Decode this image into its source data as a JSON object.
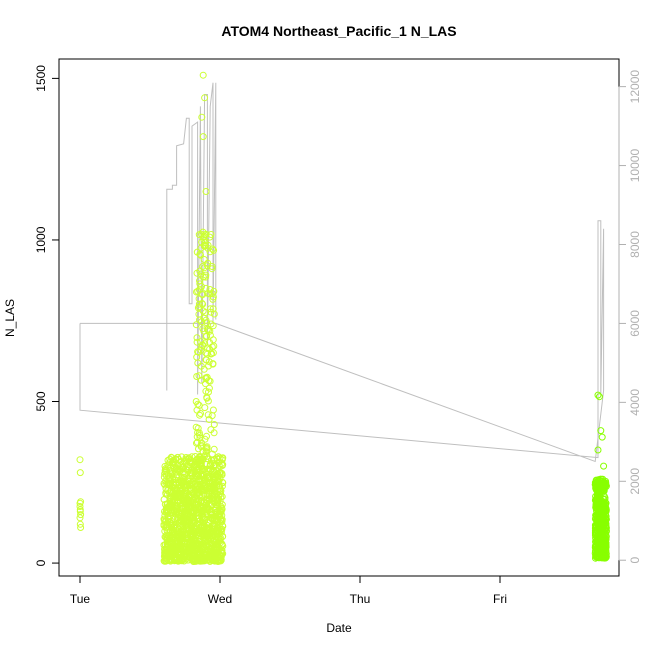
{
  "chart_data": {
    "type": "scatter",
    "title": "ATOM4 Northeast_Pacific_1 N_LAS",
    "subtitle": "",
    "xlabel": "Date",
    "ylabel": "N_LAS",
    "x_ticks": [
      "Tue",
      "Wed",
      "Thu",
      "Fri"
    ],
    "x_range_days": [
      0.0,
      3.8
    ],
    "ylim": [
      -40,
      1560
    ],
    "y_ticks": [
      0,
      500,
      1000,
      1500
    ],
    "y2lim": [
      -400,
      12700
    ],
    "y2_ticks": [
      0,
      2000,
      4000,
      6000,
      8000,
      10000,
      12000
    ],
    "grid": false,
    "colors": {
      "points_first": "#ccff33",
      "points_last": "#88ff00",
      "secondary_line": "#bfbfbf"
    },
    "series": [
      {
        "type": "scatter",
        "axis": "left",
        "clusters": [
          {
            "x_start": 0.0,
            "x_end": 0.005,
            "y_points": [
              320,
              280,
              190,
              175,
              160,
              150,
              140,
              120,
              110,
              185,
              165
            ]
          },
          {
            "x_start": 0.6,
            "x_end": 1.02,
            "y_band": [
              5,
              330
            ],
            "y_peaks": [
              [
                0.88,
                1510
              ],
              [
                0.89,
                1440
              ],
              [
                0.87,
                1380
              ],
              [
                0.88,
                1320
              ],
              [
                0.9,
                1150
              ],
              [
                0.89,
                980
              ],
              [
                0.91,
                920
              ],
              [
                0.9,
                850
              ],
              [
                0.88,
                780
              ],
              [
                0.9,
                650
              ],
              [
                0.85,
                580
              ],
              [
                0.83,
                500
              ],
              [
                0.93,
                300
              ],
              [
                0.79,
                310
              ],
              [
                0.74,
                250
              ]
            ]
          },
          {
            "x_start": 3.68,
            "x_end": 3.76,
            "y_band": [
              15,
              260
            ],
            "y_peaks": [
              [
                3.7,
                520
              ],
              [
                3.71,
                515
              ],
              [
                3.72,
                410
              ],
              [
                3.73,
                390
              ],
              [
                3.7,
                350
              ],
              [
                3.74,
                300
              ]
            ]
          }
        ]
      },
      {
        "type": "line",
        "axis": "right",
        "points": [
          [
            0.0,
            6000
          ],
          [
            0.0,
            3800
          ],
          [
            3.7,
            2600
          ],
          [
            3.7,
            8600
          ],
          [
            3.72,
            8600
          ],
          [
            3.72,
            4200
          ],
          [
            3.74,
            8400
          ],
          [
            3.74,
            4300
          ],
          [
            3.68,
            2500
          ],
          [
            0.97,
            6000
          ],
          [
            0.0,
            6000
          ]
        ],
        "extra_segments": [
          [
            [
              0.62,
              4300
            ],
            [
              0.62,
              9400
            ],
            [
              0.66,
              9400
            ],
            [
              0.66,
              9500
            ],
            [
              0.69,
              9500
            ],
            [
              0.69,
              10500
            ],
            [
              0.74,
              10550
            ],
            [
              0.76,
              11200
            ],
            [
              0.78,
              11200
            ],
            [
              0.78,
              6500
            ],
            [
              0.8,
              6500
            ],
            [
              0.8,
              11000
            ],
            [
              0.84,
              11100
            ],
            [
              0.84,
              4200
            ],
            [
              0.86,
              11500
            ],
            [
              0.87,
              4500
            ],
            [
              0.89,
              11800
            ],
            [
              0.91,
              11800
            ],
            [
              0.91,
              5500
            ],
            [
              0.93,
              11500
            ],
            [
              0.95,
              12100
            ],
            [
              0.95,
              6000
            ],
            [
              0.97,
              12100
            ],
            [
              0.97,
              6100
            ]
          ]
        ]
      }
    ]
  }
}
